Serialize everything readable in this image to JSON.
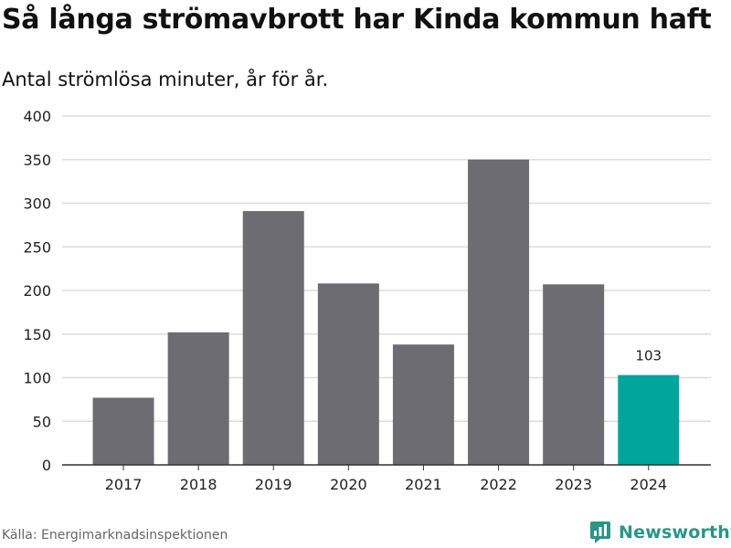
{
  "title": "Så långa strömavbrott har Kinda kommun haft",
  "subtitle": "Antal strömlösa minuter, år för år.",
  "source": "Källa: Energimarknadsinspektionen",
  "brand": "Newsworthy",
  "colors": {
    "bar": "#6d6c72",
    "highlight": "#00a59b",
    "grid": "#dddddd",
    "brand": "#2b9488"
  },
  "chart_data": {
    "type": "bar",
    "title": "Så långa strömavbrott har Kinda kommun haft",
    "subtitle": "Antal strömlösa minuter, år för år.",
    "xlabel": "",
    "ylabel": "",
    "categories": [
      "2017",
      "2018",
      "2019",
      "2020",
      "2021",
      "2022",
      "2023",
      "2024"
    ],
    "values": [
      77,
      152,
      291,
      208,
      138,
      350,
      207,
      103
    ],
    "ylim": [
      0,
      400
    ],
    "yticks": [
      0,
      50,
      100,
      150,
      200,
      250,
      300,
      350,
      400
    ],
    "grid": true,
    "highlight_index": 7,
    "annotations": [
      {
        "category": "2024",
        "label": "103"
      }
    ]
  }
}
